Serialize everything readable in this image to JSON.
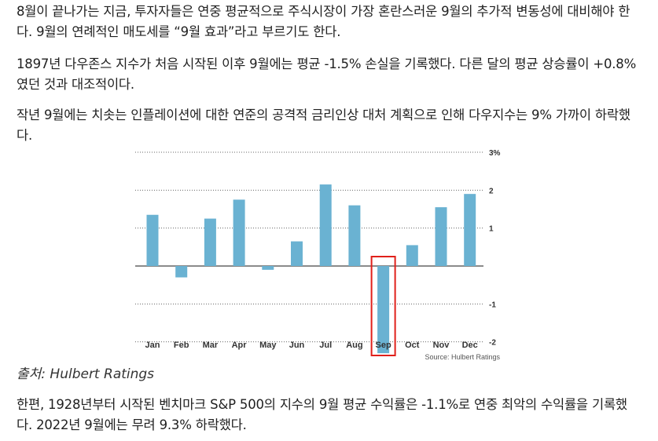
{
  "article": {
    "p1": "8월이 끝나가는 지금, 투자자들은 연중 평균적으로 주식시장이 가장 혼란스러운 9월의 추가적 변동성에 대비해야 한다. 9월의 연례적인 매도세를 “9월 효과”라고 부르기도 한다.",
    "p2": "1897년 다우존스 지수가 처음 시작된 이후 9월에는 평균 -1.5% 손실을 기록했다. 다른 달의 평균 상승률이 +0.8%였던 것과 대조적이다.",
    "p3": "작년 9월에는 치솟는 인플레이션에 대한 연준의 공격적 금리인상 대처 계획으로 인해 다우지수는 9% 가까이 하락했다.",
    "caption": "출처: Hulbert Ratings",
    "p4": "한편, 1928년부터 시작된 벤치마크 S&P 500의 지수의 9월 평균 수익률은 -1.1%로 연중 최악의 수익률을 기록했다. 2022년 9월에는 무려 9.3% 하락했다."
  },
  "chart_data": {
    "type": "bar",
    "categories": [
      "Jan",
      "Feb",
      "Mar",
      "Apr",
      "May",
      "Jun",
      "Jul",
      "Aug",
      "Sep",
      "Oct",
      "Nov",
      "Dec"
    ],
    "values": [
      1.35,
      -0.3,
      1.25,
      1.75,
      -0.1,
      0.65,
      2.15,
      1.6,
      -2.3,
      0.55,
      1.55,
      1.9
    ],
    "ylim": [
      -2,
      3
    ],
    "yticks": [
      {
        "value": 3,
        "label": "3%"
      },
      {
        "value": 2,
        "label": "2"
      },
      {
        "value": 1,
        "label": "1"
      },
      {
        "value": -1,
        "label": "-1"
      },
      {
        "value": -2,
        "label": "-2"
      }
    ],
    "source": "Source: Hulbert Ratings",
    "highlight": "Sep",
    "bar_color": "#6ab2d2",
    "highlight_color": "#e0201a",
    "grid": "dotted"
  }
}
